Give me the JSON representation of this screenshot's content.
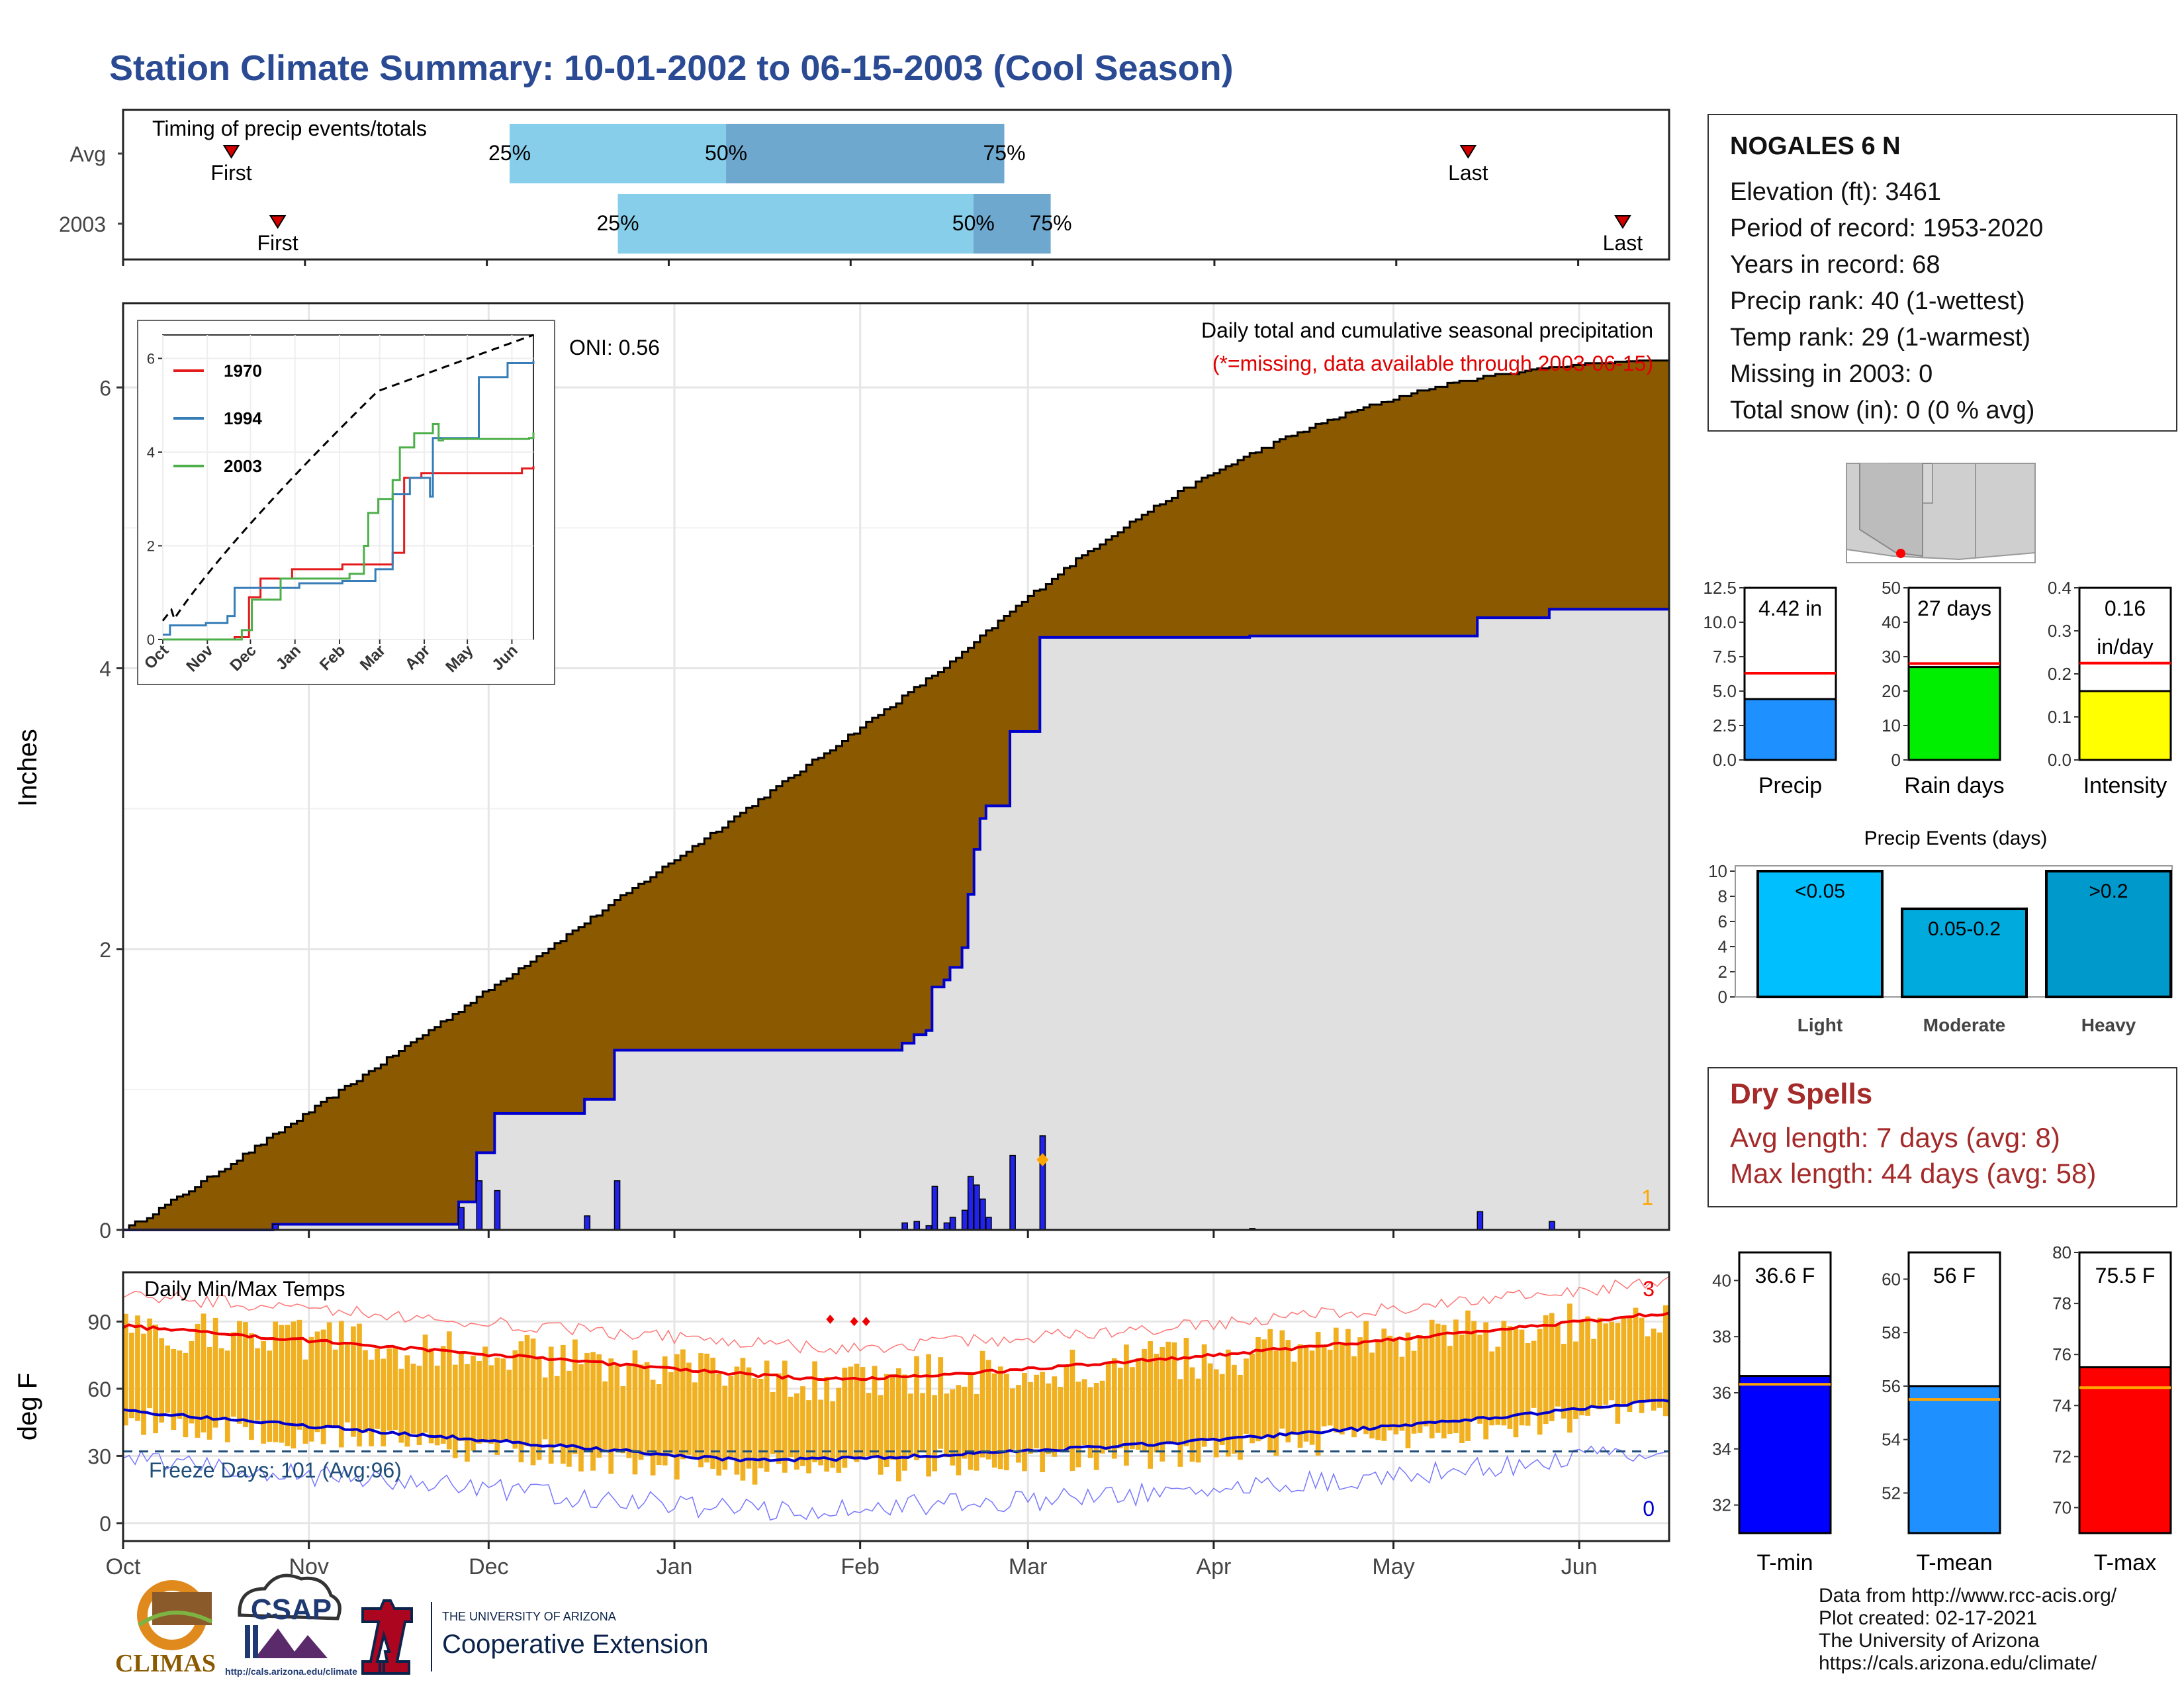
{
  "title": "Station Climate Summary: 10-01-2002 to 06-15-2003 (Cool Season)",
  "timing": {
    "label": "Timing of precip events/totals",
    "rows": [
      {
        "name": "Avg",
        "first_label": "First",
        "last_label": "Last",
        "first": 0.07,
        "last": 0.87,
        "q25": 0.25,
        "q50": 0.39,
        "q75": 0.57,
        "q25_label": "25%",
        "q50_label": "50%",
        "q75_label": "75%"
      },
      {
        "name": "2003",
        "first_label": "First",
        "last_label": "Last",
        "first": 0.1,
        "last": 0.97,
        "q25": 0.32,
        "q50": 0.55,
        "q75": 0.6,
        "q25_label": "25%",
        "q50_label": "50%",
        "q75_label": "75%"
      }
    ],
    "colors": {
      "light": "#87ceeb",
      "dark": "#6fa8cf",
      "marker": "#d40000"
    }
  },
  "station": {
    "name": "NOGALES 6 N",
    "lines": [
      "Elevation (ft): 3461",
      "Period of record: 1953-2020",
      "Years in record: 68",
      "Precip rank: 40 (1-wettest)",
      "Temp rank: 29 (1-warmest)",
      "Missing in 2003: 0",
      "Total snow (in): 0 (0 % avg)"
    ]
  },
  "precip_main": {
    "ylabel": "Inches",
    "oni_label": "ONI: 0.56",
    "subtitle": "Daily total and cumulative seasonal precipitation",
    "missing_note": "(*=missing, data available through 2003-06-15)",
    "corner_label": "1",
    "yticks": [
      "0",
      "2",
      "4",
      "6"
    ],
    "ylim": [
      0,
      6.6
    ],
    "months": [
      "Oct",
      "Nov",
      "Dec",
      "Jan",
      "Feb",
      "Mar",
      "Apr",
      "May",
      "Jun"
    ],
    "colors": {
      "avg_fill": "#8b5a00",
      "obs_fill": "#e0e0e0",
      "obs_line": "#0000cc",
      "daily_bar": "#2222ee",
      "marker": "#ffa500"
    }
  },
  "inset": {
    "legend": [
      "1970",
      "1994",
      "2003"
    ],
    "colors": [
      "#e41a1c",
      "#377eb8",
      "#4daf4a"
    ],
    "yticks": [
      "0",
      "2",
      "4",
      "6"
    ],
    "months": [
      "Oct",
      "Nov",
      "Dec",
      "Jan",
      "Feb",
      "Mar",
      "Apr",
      "May",
      "Jun"
    ]
  },
  "small_bars": [
    {
      "label": "Precip",
      "value_label": "4.42 in",
      "value": 4.42,
      "avg": 6.3,
      "ylim": [
        0,
        12.5
      ],
      "yticks": [
        "0.0",
        "2.5",
        "5.0",
        "7.5",
        "10.0",
        "12.5"
      ],
      "color": "#1e90ff"
    },
    {
      "label": "Rain days",
      "value_label": "27 days",
      "value": 27,
      "avg": 28,
      "ylim": [
        0,
        50
      ],
      "yticks": [
        "0",
        "10",
        "20",
        "30",
        "40",
        "50"
      ],
      "color": "#00ee00"
    },
    {
      "label": "Intensity",
      "value_label": "0.16",
      "value_label2": "in/day",
      "value": 0.16,
      "avg": 0.225,
      "ylim": [
        0,
        0.4
      ],
      "yticks": [
        "0.0",
        "0.1",
        "0.2",
        "0.3",
        "0.4"
      ],
      "color": "#ffff00"
    }
  ],
  "events": {
    "title": "Precip Events (days)",
    "yticks": [
      "0",
      "2",
      "4",
      "6",
      "8",
      "10"
    ],
    "bars": [
      {
        "label": "Light",
        "bar_label": "<0.05",
        "value": 10,
        "color": "#00bfff"
      },
      {
        "label": "Moderate",
        "bar_label": "0.05-0.2",
        "value": 7,
        "color": "#00aadd"
      },
      {
        "label": "Heavy",
        "bar_label": ">0.2",
        "value": 10,
        "color": "#0099cc"
      }
    ]
  },
  "dry_spells": {
    "title": "Dry Spells",
    "lines": [
      "Avg length: 7 days (avg: 8)",
      "Max length: 44 days (avg: 58)"
    ]
  },
  "temps": {
    "title": "Daily Min/Max Temps",
    "ylabel": "deg F",
    "yticks": [
      "0",
      "30",
      "60",
      "90"
    ],
    "ylim": [
      -8,
      112
    ],
    "freeze_label": "Freeze Days: 101 (Avg:96)",
    "top_label": "3",
    "bottom_label": "0",
    "months": [
      "Oct",
      "Nov",
      "Dec",
      "Jan",
      "Feb",
      "Mar",
      "Apr",
      "May",
      "Jun"
    ],
    "colors": {
      "bar": "#f0b020",
      "max_avg": "#ee0000",
      "min_avg": "#0000cc",
      "record": "#ff7777",
      "record_min": "#7777ff",
      "freeze": "#1f4e79"
    }
  },
  "temp_bars": [
    {
      "label": "T-min",
      "value_label": "36.6 F",
      "value": 36.6,
      "avg": 36.3,
      "ylim": [
        31,
        41
      ],
      "yticks": [
        "32",
        "34",
        "36",
        "38",
        "40"
      ],
      "color": "#0000ff"
    },
    {
      "label": "T-mean",
      "value_label": "56 F",
      "value": 56.0,
      "avg": 55.5,
      "ylim": [
        50.5,
        61
      ],
      "yticks": [
        "52",
        "54",
        "56",
        "58",
        "60"
      ],
      "color": "#1e90ff"
    },
    {
      "label": "T-max",
      "value_label": "75.5 F",
      "value": 75.5,
      "avg": 74.7,
      "ylim": [
        69,
        80
      ],
      "yticks": [
        "70",
        "72",
        "74",
        "76",
        "78",
        "80"
      ],
      "color": "#ff0000"
    }
  ],
  "credits": [
    "Data from http://www.rcc-acis.org/",
    "Plot created: 02-17-2021",
    "The University of Arizona",
    "https://cals.arizona.edu/climate/"
  ],
  "logos": {
    "climas": "CLIMAS",
    "csap": "CSAP",
    "csap_url": "http://cals.arizona.edu/climate",
    "ua_small": "THE UNIVERSITY OF ARIZONA",
    "ua_big": "Cooperative Extension"
  }
}
